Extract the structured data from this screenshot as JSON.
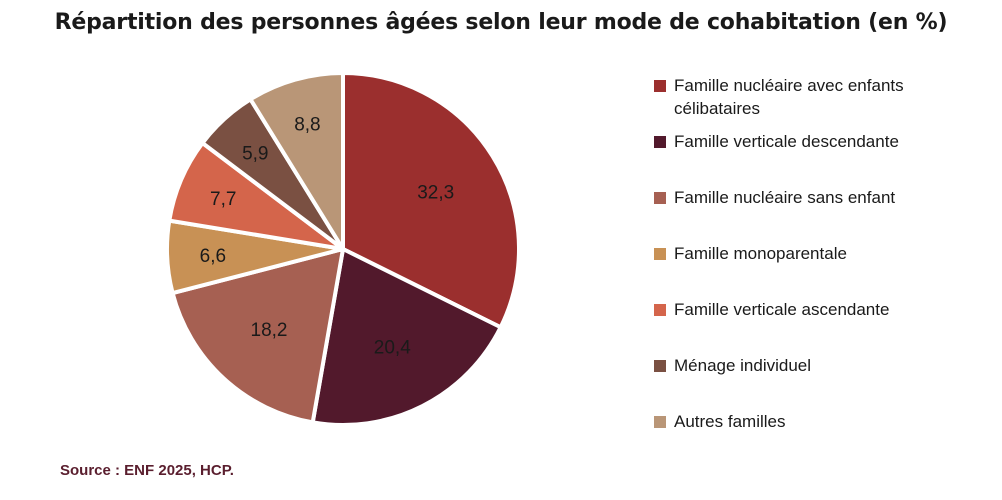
{
  "chart_data": {
    "type": "pie",
    "title": "Répartition des personnes âgées selon leur mode de cohabitation (en %)",
    "slices": [
      {
        "name": "Famille nucléaire avec enfants célibataires",
        "value": 32.3,
        "label": "32,3",
        "color": "#9b2f2e"
      },
      {
        "name": "Famille verticale descendante",
        "value": 20.4,
        "label": "20,4",
        "color": "#52192c"
      },
      {
        "name": "Famille nucléaire sans enfant",
        "value": 18.2,
        "label": "18,2",
        "color": "#a66052"
      },
      {
        "name": "Famille monoparentale",
        "value": 6.6,
        "label": "6,6",
        "color": "#c89155"
      },
      {
        "name": "Famille verticale ascendante",
        "value": 7.7,
        "label": "7,7",
        "color": "#d4654b"
      },
      {
        "name": "Ménage individuel",
        "value": 5.9,
        "label": "5,9",
        "color": "#7a5042"
      },
      {
        "name": "Autres familles",
        "value": 8.8,
        "label": "8,8",
        "color": "#b99677"
      }
    ],
    "legend_position": "right"
  },
  "source": "Source : ENF 2025, HCP."
}
